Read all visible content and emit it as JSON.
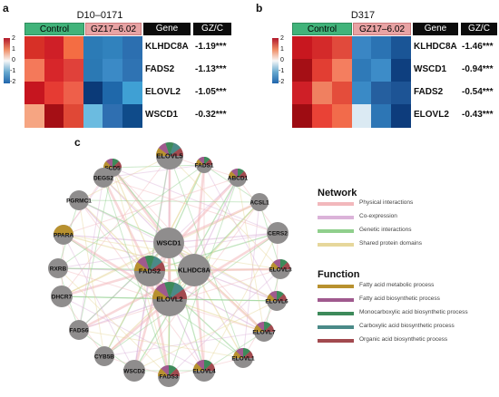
{
  "panel_a": {
    "letter": "a",
    "title": "D10–0171",
    "headers": {
      "control": "Control",
      "treatment": "GZ17–6.02",
      "gene": "Gene",
      "gzc": "GZ/C"
    },
    "rows": [
      {
        "gene": "KLHDC8A",
        "gzc": "-1.19***",
        "colors": [
          "#d73027",
          "#cf1f27",
          "#f46d43",
          "#2c7bb6",
          "#3182bd",
          "#2c6fb0"
        ]
      },
      {
        "gene": "FADS2",
        "gzc": "-1.13***",
        "colors": [
          "#f4795a",
          "#d7262a",
          "#e0413a",
          "#2b79b4",
          "#3b8ac6",
          "#2f73b3"
        ]
      },
      {
        "gene": "ELOVL2",
        "gzc": "-1.05***",
        "colors": [
          "#c6151f",
          "#e63b33",
          "#ee5f4a",
          "#0b3a78",
          "#1f68aa",
          "#3fa0d4"
        ]
      },
      {
        "gene": "WSCD1",
        "gzc": "-0.32***",
        "colors": [
          "#f6a582",
          "#a50f15",
          "#e04836",
          "#6bbbe0",
          "#2f6fb1",
          "#0f4b8a"
        ]
      }
    ],
    "colorbar_ticks": [
      "2",
      "1",
      "0",
      "-1",
      "-2"
    ]
  },
  "panel_b": {
    "letter": "b",
    "title": "D317",
    "headers": {
      "control": "Control",
      "treatment": "GZ17–6.02",
      "gene": "Gene",
      "gzc": "GZ/C"
    },
    "rows": [
      {
        "gene": "KLHDC8A",
        "gzc": "-1.46***",
        "colors": [
          "#c8171f",
          "#d42a2a",
          "#e14a3c",
          "#3a86c4",
          "#2b73b3",
          "#1a5596"
        ]
      },
      {
        "gene": "WSCD1",
        "gzc": "-0.94***",
        "colors": [
          "#a50f15",
          "#e23e33",
          "#f47e5f",
          "#2f7ab8",
          "#3d8cc8",
          "#0e3f7f"
        ]
      },
      {
        "gene": "FADS2",
        "gzc": "-0.54***",
        "colors": [
          "#cf1f27",
          "#f08060",
          "#e44d3b",
          "#3a8ac6",
          "#255f9f",
          "#1d5495"
        ]
      },
      {
        "gene": "ELOVL2",
        "gzc": "-0.43***",
        "colors": [
          "#9e0c12",
          "#e94236",
          "#f26b4b",
          "#dbeaf3",
          "#2d76b5",
          "#0d3c7c"
        ]
      }
    ],
    "colorbar_ticks": [
      "2",
      "1",
      "0",
      "-1",
      "-2"
    ]
  },
  "panel_c": {
    "letter": "c",
    "network_legend": {
      "title": "Network",
      "items": [
        {
          "label": "Physical interactions",
          "color": "#f2b8bc"
        },
        {
          "label": "Co-expression",
          "color": "#dbb3d9"
        },
        {
          "label": "Genetic interactions",
          "color": "#8fcf8c"
        },
        {
          "label": "Shared protein domains",
          "color": "#e6d79b"
        }
      ]
    },
    "function_legend": {
      "title": "Function",
      "items": [
        {
          "label": "Fatty acid metabolic process",
          "color": "#b8912f"
        },
        {
          "label": "Fatty acid biosynthetic process",
          "color": "#a05a8e"
        },
        {
          "label": "Monocarboxylic acid biosynthetic process",
          "color": "#3d8a5a"
        },
        {
          "label": "Carboxylic acid biosynthetic process",
          "color": "#4a8a88"
        },
        {
          "label": "Organic acid biosynthetic process",
          "color": "#a24a4f"
        }
      ]
    },
    "nodes": [
      {
        "label": "SCD5",
        "colors": [
          "#b8912f",
          "#a05a8e",
          "#3d8a5a",
          "#a24a4f"
        ]
      },
      {
        "label": "ELOVL5",
        "colors": [
          "#b8912f",
          "#a05a8e",
          "#3d8a5a",
          "#4a8a88",
          "#a24a4f"
        ]
      },
      {
        "label": "FADS1",
        "colors": [
          "#b8912f",
          "#a05a8e",
          "#3d8a5a",
          "#a24a4f"
        ]
      },
      {
        "label": "ABCD1",
        "colors": [
          "#b8912f",
          "#a05a8e",
          "#3d8a5a",
          "#a24a4f"
        ]
      },
      {
        "label": "ACSL1",
        "colors": []
      },
      {
        "label": "CERS2",
        "colors": []
      },
      {
        "label": "ELOVL3",
        "colors": [
          "#b8912f",
          "#a05a8e",
          "#3d8a5a",
          "#a24a4f"
        ]
      },
      {
        "label": "ELOVL6",
        "colors": [
          "#b8912f",
          "#a05a8e",
          "#3d8a5a",
          "#a24a4f"
        ]
      },
      {
        "label": "ELOVL7",
        "colors": [
          "#b8912f",
          "#a05a8e",
          "#3d8a5a",
          "#a24a4f"
        ]
      },
      {
        "label": "ELOVL1",
        "colors": [
          "#b8912f",
          "#a05a8e",
          "#3d8a5a",
          "#a24a4f"
        ]
      },
      {
        "label": "ELOVL4",
        "colors": [
          "#b8912f",
          "#a05a8e",
          "#3d8a5a",
          "#a24a4f"
        ]
      },
      {
        "label": "FADS3",
        "colors": [
          "#b8912f",
          "#a05a8e",
          "#3d8a5a",
          "#a24a4f"
        ]
      },
      {
        "label": "WSCD2",
        "colors": []
      },
      {
        "label": "CYB5B",
        "colors": []
      },
      {
        "label": "FADS6",
        "colors": []
      },
      {
        "label": "DHCR7",
        "colors": []
      },
      {
        "label": "RXRB",
        "colors": []
      },
      {
        "label": "PPARA",
        "colors": [
          "#b8912f"
        ]
      },
      {
        "label": "PGRMC1",
        "colors": []
      },
      {
        "label": "DEGS2",
        "colors": []
      },
      {
        "label": "WSCD1",
        "colors": []
      },
      {
        "label": "FADS2",
        "colors": [
          "#b8912f",
          "#a05a8e",
          "#3d8a5a",
          "#4a8a88",
          "#a24a4f"
        ]
      },
      {
        "label": "KLHDC8A",
        "colors": []
      },
      {
        "label": "ELOVL2",
        "colors": [
          "#b8912f",
          "#a05a8e",
          "#3d8a5a",
          "#4a8a88",
          "#a24a4f"
        ]
      }
    ]
  }
}
